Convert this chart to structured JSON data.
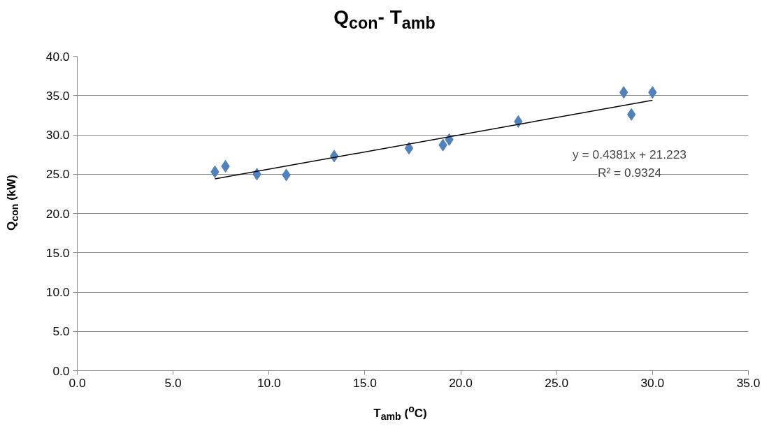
{
  "chart_data": {
    "type": "scatter",
    "title": "Q$_{con}$- T$_{amb}$",
    "xlabel": "T$_{amb}$ ($^{o}$C)",
    "ylabel": "Q$_{con}$ (kW)",
    "series": [
      {
        "type": "scatter",
        "color": "#4f81bd",
        "marker": "diamond",
        "x": [
          7.18,
          7.73,
          9.37,
          10.9,
          13.4,
          17.3,
          19.07,
          19.4,
          23.0,
          28.5,
          28.9,
          30.0
        ],
        "values": [
          25.3,
          26.0,
          25.0,
          24.9,
          27.3,
          28.3,
          28.7,
          29.4,
          31.7,
          35.4,
          32.6,
          35.4
        ]
      },
      {
        "type": "line",
        "color": "#000000",
        "marker": "none",
        "line_style": "solid",
        "x": [
          7.18,
          30.0
        ],
        "values": [
          24.4,
          34.4
        ]
      }
    ],
    "annotations": [
      "y = 0.4381x + 21.223",
      "R² = 0.9324"
    ],
    "xlim": [
      0,
      35
    ],
    "ylim": [
      0,
      40
    ],
    "xticks": [
      {
        "value": 0,
        "label": "0.0"
      },
      {
        "value": 5,
        "label": "5.0"
      },
      {
        "value": 10,
        "label": "10.0"
      },
      {
        "value": 15,
        "label": "15.0"
      },
      {
        "value": 20,
        "label": "20.0"
      },
      {
        "value": 25,
        "label": "25.0"
      },
      {
        "value": 30,
        "label": "30.0"
      },
      {
        "value": 35,
        "label": "35.0"
      }
    ],
    "yticks": [
      {
        "value": 0,
        "label": "0.0"
      },
      {
        "value": 5,
        "label": "5.0"
      },
      {
        "value": 10,
        "label": "10.0"
      },
      {
        "value": 15,
        "label": "15.0"
      },
      {
        "value": 20,
        "label": "20.0"
      },
      {
        "value": 25,
        "label": "25.0"
      },
      {
        "value": 30,
        "label": "30.0"
      },
      {
        "value": 35,
        "label": "35.0"
      },
      {
        "value": 40,
        "label": "40.0"
      }
    ],
    "grid": "y"
  }
}
